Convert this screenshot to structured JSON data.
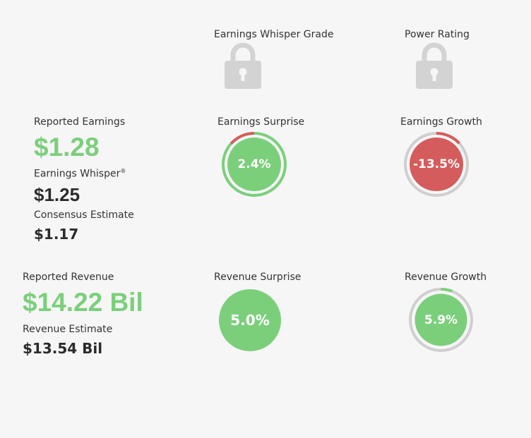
{
  "grade": {
    "earnings_whisper_grade_label": "Earnings Whisper Grade",
    "power_rating_label": "Power Rating",
    "lock_icon": "lock-icon"
  },
  "earnings": {
    "reported_label": "Reported Earnings",
    "reported_value": "$1.28",
    "whisper_label": "Earnings Whisper",
    "whisper_mark": "®",
    "whisper_value": "$1.25",
    "consensus_label": "Consensus Estimate",
    "consensus_value": "$1.17",
    "surprise_label": "Earnings Surprise",
    "surprise_value": "2.4%",
    "growth_label": "Earnings Growth",
    "growth_value": "-13.5%"
  },
  "revenue": {
    "reported_label": "Reported Revenue",
    "reported_value": "$14.22 Bil",
    "estimate_label": "Revenue Estimate",
    "estimate_value": "$13.54 Bil",
    "surprise_label": "Revenue Surprise",
    "surprise_value": "5.0%",
    "growth_label": "Revenue Growth",
    "growth_value": "5.9%"
  },
  "colors": {
    "positive": "#7bcf7b",
    "negative": "#d55c5c",
    "track": "#cfcfcf",
    "lock": "#d3d3d3"
  }
}
